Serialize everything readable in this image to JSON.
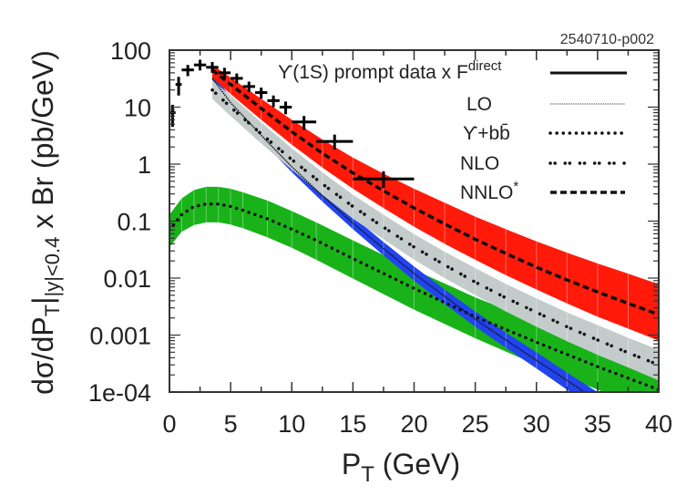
{
  "chart_data": {
    "type": "line",
    "figure_id": "2540710-p002",
    "title": "",
    "xlabel": "P",
    "xlabel_sub": "T",
    "xlabel_rest": " (GeV)",
    "ylabel": "dσ/dP",
    "ylabel_sub1": "T",
    "ylabel_mid": "|",
    "ylabel_sub2": "|y|<0.4",
    "ylabel_rest": " x Br (pb/GeV)",
    "xlim": [
      0,
      40
    ],
    "ylim": [
      0.0001,
      100
    ],
    "yscale": "log",
    "x_ticks": [
      0,
      5,
      10,
      15,
      20,
      25,
      30,
      35,
      40
    ],
    "x_tick_labels": [
      "0",
      "5",
      "10",
      "15",
      "20",
      "25",
      "30",
      "35",
      "40"
    ],
    "y_ticks": [
      100,
      10,
      1,
      0.1,
      0.01,
      0.001,
      0.0001
    ],
    "y_tick_labels": [
      "100",
      "10",
      "1",
      "0.1",
      "0.01",
      "0.001",
      "1e-04"
    ],
    "grid": false,
    "legend_position": "top-right",
    "legend": [
      {
        "label": "ϒ(1S) prompt data x F",
        "sup": "direct",
        "style": "solid"
      },
      {
        "label": "LO",
        "sup": "",
        "style": "lo"
      },
      {
        "label": "ϒ+bb̄",
        "sup": "",
        "style": "dotted"
      },
      {
        "label": "NLO",
        "sup": "",
        "style": "nlo"
      },
      {
        "label": "NNLO",
        "sup": "*",
        "style": "dashed"
      }
    ],
    "data_points": {
      "name": "ϒ(1S) prompt data x F^direct",
      "points": [
        {
          "x": 0.25,
          "y": 8,
          "xerr": 0.25,
          "ylo": 4.5,
          "yhi": 11
        },
        {
          "x": 0.75,
          "y": 25,
          "xerr": 0.25,
          "ylo": 16,
          "yhi": 34
        },
        {
          "x": 1.5,
          "y": 45,
          "xerr": 0.5,
          "ylo": 35,
          "yhi": 55
        },
        {
          "x": 2.5,
          "y": 55,
          "xerr": 0.5,
          "ylo": 44,
          "yhi": 68
        },
        {
          "x": 3.5,
          "y": 50,
          "xerr": 0.5,
          "ylo": 40,
          "yhi": 62
        },
        {
          "x": 4.5,
          "y": 40,
          "xerr": 0.5,
          "ylo": 32,
          "yhi": 49
        },
        {
          "x": 5.5,
          "y": 32,
          "xerr": 0.5,
          "ylo": 26,
          "yhi": 39
        },
        {
          "x": 6.5,
          "y": 23,
          "xerr": 0.5,
          "ylo": 18.5,
          "yhi": 28
        },
        {
          "x": 7.5,
          "y": 18,
          "xerr": 0.5,
          "ylo": 14,
          "yhi": 22
        },
        {
          "x": 8.5,
          "y": 13,
          "xerr": 0.5,
          "ylo": 10,
          "yhi": 16
        },
        {
          "x": 9.5,
          "y": 10,
          "xerr": 0.5,
          "ylo": 7.5,
          "yhi": 12.5
        },
        {
          "x": 11,
          "y": 5.5,
          "xerr": 1.0,
          "ylo": 4,
          "yhi": 7
        },
        {
          "x": 13.5,
          "y": 2.5,
          "xerr": 1.5,
          "ylo": 1.8,
          "yhi": 3.3
        },
        {
          "x": 17.5,
          "y": 0.55,
          "xerr": 2.5,
          "ylo": 0.38,
          "yhi": 0.75
        }
      ]
    },
    "bands": [
      {
        "name": "Υ+bb̄ (green)",
        "color": "#19b319",
        "line_style": "dotted",
        "x": [
          0,
          1,
          2,
          3,
          4,
          5,
          6,
          8,
          10,
          12,
          15,
          20,
          25,
          30,
          35,
          40
        ],
        "central": [
          0.07,
          0.13,
          0.18,
          0.2,
          0.2,
          0.18,
          0.155,
          0.11,
          0.072,
          0.046,
          0.022,
          0.0066,
          0.0021,
          0.00075,
          0.00028,
          0.00011
        ],
        "low": [
          0.035,
          0.065,
          0.085,
          0.095,
          0.095,
          0.087,
          0.075,
          0.052,
          0.034,
          0.021,
          0.0098,
          0.0028,
          0.00088,
          0.0003,
          0.00011,
          4e-05
        ],
        "high": [
          0.13,
          0.25,
          0.35,
          0.4,
          0.4,
          0.37,
          0.32,
          0.23,
          0.15,
          0.095,
          0.046,
          0.014,
          0.0046,
          0.0017,
          0.00065,
          0.00026
        ]
      },
      {
        "name": "LO (blue)",
        "color": "#2244ee",
        "line_style": "lo",
        "x": [
          3.5,
          5,
          7.5,
          10,
          12.5,
          15,
          17.5,
          20,
          22.5,
          25,
          27.5,
          30,
          32.5,
          35,
          37.5,
          40
        ],
        "central": [
          32,
          12,
          3.2,
          0.9,
          0.28,
          0.092,
          0.033,
          0.012,
          0.0048,
          0.0019,
          0.00082,
          0.00036,
          0.00016,
          7e-05,
          3.3e-05,
          1.5e-05
        ],
        "low": [
          27,
          10,
          2.6,
          0.72,
          0.22,
          0.072,
          0.025,
          0.009,
          0.0035,
          0.0014,
          0.0006,
          0.00026,
          0.00011,
          5e-05,
          2.2e-05,
          1e-05
        ],
        "high": [
          40,
          15,
          4.0,
          1.1,
          0.35,
          0.12,
          0.043,
          0.016,
          0.0063,
          0.0026,
          0.0011,
          0.0005,
          0.00022,
          0.0001,
          4.8e-05,
          2.3e-05
        ]
      },
      {
        "name": "NLO (grey)",
        "color": "#c3cccb",
        "line_style": "nlo",
        "x": [
          3.5,
          5,
          7.5,
          10,
          12.5,
          15,
          17.5,
          20,
          22.5,
          25,
          27.5,
          30,
          32.5,
          35,
          37.5,
          40
        ],
        "central": [
          20,
          10,
          3.4,
          1.2,
          0.45,
          0.18,
          0.078,
          0.035,
          0.017,
          0.0085,
          0.0045,
          0.0025,
          0.0014,
          0.00082,
          0.00049,
          0.0003
        ],
        "low": [
          14,
          7,
          2.3,
          0.8,
          0.29,
          0.11,
          0.048,
          0.021,
          0.01,
          0.005,
          0.0026,
          0.0014,
          0.00078,
          0.00045,
          0.00027,
          0.00016
        ],
        "high": [
          30,
          16,
          5.4,
          1.9,
          0.72,
          0.29,
          0.13,
          0.059,
          0.029,
          0.015,
          0.0079,
          0.0044,
          0.0025,
          0.0015,
          0.0009,
          0.00055
        ]
      },
      {
        "name": "NNLO* (red)",
        "color": "#ff1a0a",
        "line_style": "dashed",
        "x": [
          3.5,
          5,
          7.5,
          10,
          12.5,
          15,
          17.5,
          20,
          22.5,
          25,
          27.5,
          30,
          32.5,
          35,
          37.5,
          40
        ],
        "central": [
          45,
          25,
          9.5,
          3.7,
          1.55,
          0.7,
          0.34,
          0.17,
          0.089,
          0.048,
          0.027,
          0.0155,
          0.0093,
          0.0057,
          0.0036,
          0.0023
        ],
        "low": [
          33,
          17,
          6.0,
          2.2,
          0.87,
          0.37,
          0.17,
          0.08,
          0.04,
          0.021,
          0.0113,
          0.0063,
          0.0036,
          0.0021,
          0.0013,
          0.0008
        ],
        "high": [
          55,
          33,
          14,
          6.0,
          2.7,
          1.3,
          0.68,
          0.37,
          0.21,
          0.12,
          0.072,
          0.044,
          0.028,
          0.018,
          0.012,
          0.0078
        ]
      }
    ]
  }
}
